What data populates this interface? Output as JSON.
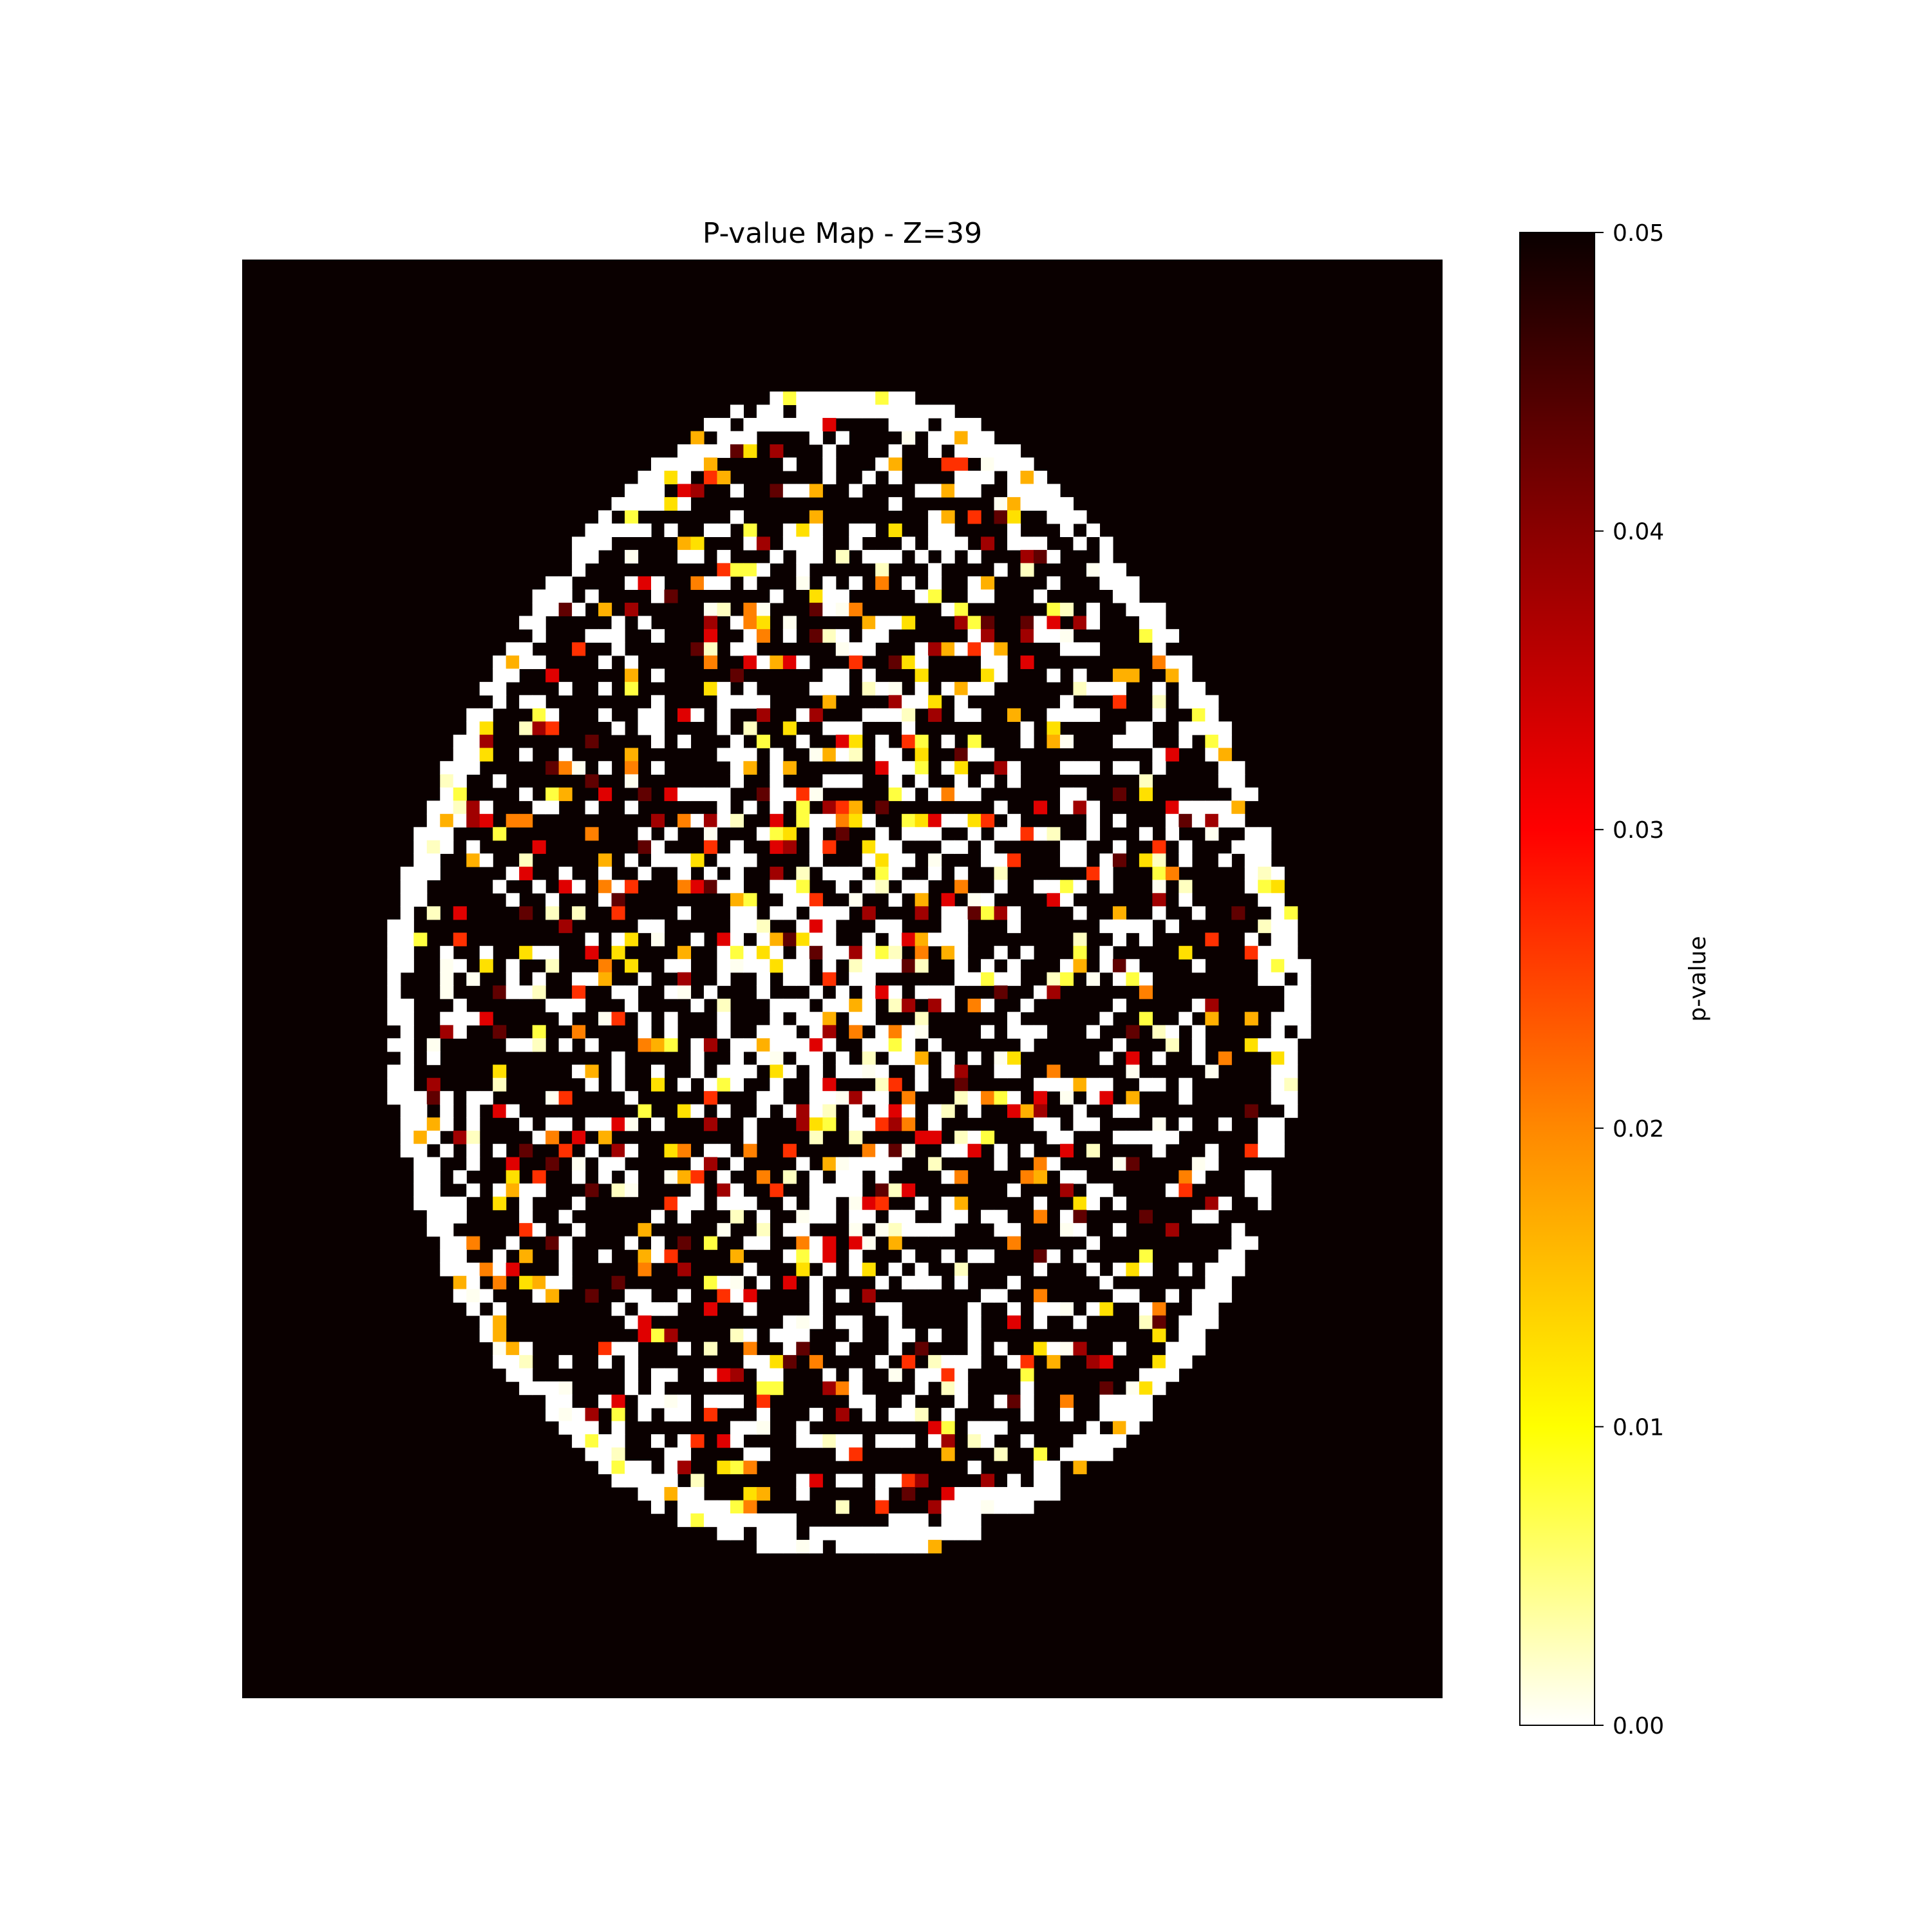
{
  "chart_data": {
    "type": "heatmap",
    "title": "P-value Map - Z=39",
    "colorbar": {
      "label": "p-value",
      "colormap": "hot_r",
      "range": [
        0.0,
        0.05
      ],
      "ticks": [
        "0.00",
        "0.01",
        "0.02",
        "0.03",
        "0.04",
        "0.05"
      ],
      "stops": [
        "#ffffff",
        "#ffff00",
        "#ff8800",
        "#ff0000",
        "#8a0000",
        "#0a0000"
      ]
    },
    "grid": {
      "cols": 91,
      "rows": 109,
      "masked_value": 0.05,
      "note_visible": "axial brain slice; background at maximum value"
    },
    "axes_visible": false
  }
}
